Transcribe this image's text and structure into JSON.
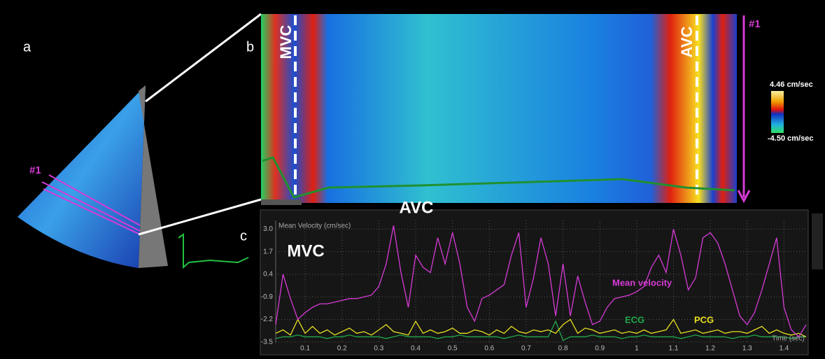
{
  "panel_labels": [
    "a",
    "b",
    "c"
  ],
  "panel_a": {
    "marker": "#1"
  },
  "panel_b": {
    "marker": "#1",
    "annotations": [
      "MVC",
      "AVC"
    ],
    "colorbar": {
      "max_label": "4.46 cm/sec",
      "min_label": "-4.50 cm/sec"
    }
  },
  "chart_data": {
    "type": "line",
    "ylabel": "Mean Velocity (cm/sec)",
    "xlabel": "Time (sec)",
    "annotations": [
      "AVC",
      "MVC"
    ],
    "x": [
      0.02,
      0.04,
      0.06,
      0.08,
      0.1,
      0.12,
      0.14,
      0.16,
      0.18,
      0.2,
      0.22,
      0.24,
      0.26,
      0.28,
      0.3,
      0.32,
      0.34,
      0.36,
      0.38,
      0.4,
      0.42,
      0.44,
      0.46,
      0.48,
      0.5,
      0.52,
      0.54,
      0.56,
      0.58,
      0.6,
      0.62,
      0.64,
      0.66,
      0.68,
      0.7,
      0.72,
      0.74,
      0.76,
      0.78,
      0.8,
      0.82,
      0.84,
      0.86,
      0.88,
      0.9,
      0.92,
      0.94,
      0.96,
      0.98,
      1.0,
      1.02,
      1.04,
      1.06,
      1.08,
      1.1,
      1.12,
      1.14,
      1.16,
      1.18,
      1.2,
      1.22,
      1.24,
      1.26,
      1.28,
      1.3,
      1.32,
      1.34,
      1.36,
      1.38,
      1.4,
      1.42,
      1.44,
      1.46
    ],
    "series": [
      {
        "name": "Mean velocity",
        "color": "#d63bd6",
        "values": [
          -2.5,
          0.4,
          -1.0,
          -2.2,
          -1.8,
          -1.5,
          -1.3,
          -1.3,
          -1.2,
          -1.1,
          -1.0,
          -1.0,
          -0.9,
          -0.8,
          -0.3,
          1.0,
          3.2,
          0.5,
          -1.5,
          1.5,
          0.8,
          0.5,
          2.5,
          1.0,
          2.8,
          1.0,
          -1.5,
          -2.3,
          -1.0,
          -0.8,
          -0.5,
          -0.2,
          1.5,
          2.8,
          -1.5,
          0.2,
          2.5,
          1.0,
          -2.0,
          1.0,
          -2.0,
          0.3,
          -1.2,
          -2.5,
          -2.3,
          -1.5,
          -1.0,
          -0.9,
          -0.8,
          -0.6,
          -0.3,
          0.8,
          1.5,
          0.5,
          3.0,
          1.5,
          -0.5,
          0.2,
          2.5,
          2.8,
          2.2,
          1.0,
          -0.5,
          -2.0,
          -2.5,
          -1.8,
          -0.5,
          1.0,
          2.5,
          -1.5,
          -2.8,
          -3.2,
          -2.5
        ]
      },
      {
        "name": "ECG",
        "color": "#1fa84a",
        "values": [
          -3.3,
          -3.2,
          -3.2,
          -3.1,
          -3.2,
          -3.2,
          -3.2,
          -3.3,
          -3.2,
          -3.2,
          -3.1,
          -3.2,
          -3.2,
          -3.2,
          -3.2,
          -3.3,
          -3.2,
          -3.1,
          -3.2,
          -3.2,
          -3.2,
          -3.2,
          -3.3,
          -3.2,
          -3.2,
          -3.1,
          -3.2,
          -3.2,
          -3.2,
          -3.2,
          -3.2,
          -3.3,
          -3.2,
          -3.1,
          -3.2,
          -3.2,
          -3.2,
          -3.2,
          -2.3,
          -3.4,
          -3.2,
          -3.2,
          -3.2,
          -3.1,
          -3.2,
          -3.2,
          -3.2,
          -3.3,
          -3.2,
          -3.2,
          -3.1,
          -3.2,
          -3.2,
          -3.2,
          -3.2,
          -3.3,
          -3.2,
          -3.1,
          -3.2,
          -3.2,
          -3.2,
          -3.2,
          -3.3,
          -3.2,
          -3.2,
          -3.1,
          -3.2,
          -3.2,
          -3.2,
          -3.2,
          -3.3,
          -3.2,
          -3.2
        ]
      },
      {
        "name": "PCG",
        "color": "#e8e020",
        "values": [
          -3.0,
          -2.8,
          -3.1,
          -2.2,
          -3.0,
          -2.6,
          -3.0,
          -2.8,
          -3.1,
          -2.9,
          -2.7,
          -3.0,
          -2.9,
          -3.1,
          -2.8,
          -2.5,
          -2.9,
          -3.0,
          -3.1,
          -2.3,
          -3.0,
          -2.8,
          -3.0,
          -2.9,
          -2.7,
          -3.0,
          -3.0,
          -2.8,
          -2.9,
          -3.1,
          -2.8,
          -3.0,
          -2.6,
          -2.9,
          -3.0,
          -2.8,
          -2.9,
          -2.8,
          -3.0,
          -2.5,
          -2.2,
          -3.0,
          -2.7,
          -2.8,
          -3.0,
          -2.9,
          -2.8,
          -3.0,
          -2.9,
          -3.0,
          -2.8,
          -3.0,
          -2.9,
          -2.8,
          -2.2,
          -3.0,
          -2.9,
          -2.8,
          -3.0,
          -2.9,
          -2.8,
          -3.0,
          -2.9,
          -2.9,
          -3.0,
          -2.8,
          -2.6,
          -3.0,
          -2.8,
          -3.0,
          -3.1,
          -3.0,
          -3.2
        ]
      }
    ],
    "xlim": [
      0.02,
      1.46
    ],
    "ylim": [
      -3.55,
      3.5
    ],
    "xticks": [
      0.1,
      0.2,
      0.3,
      0.4,
      0.5,
      0.6,
      0.7,
      0.8,
      0.9,
      1.0,
      1.1,
      1.2,
      1.3,
      1.4
    ],
    "yticks": [
      {
        "value": 3,
        "label": "3.0"
      },
      1.7,
      0.4,
      -0.9,
      -2.2,
      -3.5
    ],
    "grid": true
  }
}
